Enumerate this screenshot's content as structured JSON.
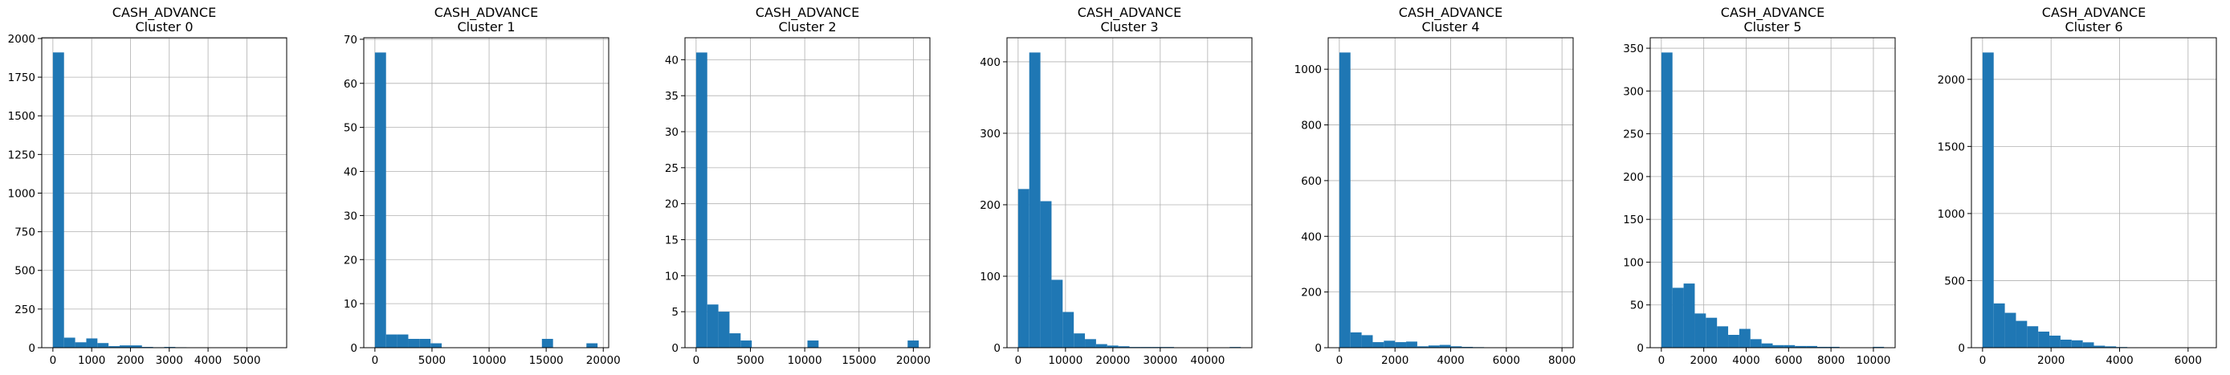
{
  "chart_data": [
    {
      "type": "bar",
      "title": [
        "CASH_ADVANCE",
        "Cluster 0"
      ],
      "bin_edges": [
        0,
        287,
        574,
        861,
        1148,
        1435,
        1722,
        2009,
        2296,
        2583,
        2870,
        3157,
        3444,
        3731,
        4018,
        4305,
        4592,
        4879,
        5166,
        5453,
        5740
      ],
      "values": [
        1910,
        65,
        35,
        60,
        30,
        10,
        15,
        15,
        5,
        3,
        5,
        3,
        2,
        1,
        1,
        1,
        0,
        1,
        0,
        1
      ],
      "xlim": [
        -287,
        6027
      ],
      "ylim": [
        0,
        2005
      ],
      "xticks": [
        0,
        1000,
        2000,
        3000,
        4000,
        5000
      ],
      "xtick_labels": [
        "0",
        "1000",
        "2000",
        "3000",
        "4000",
        "5000"
      ],
      "yticks": [
        0,
        250,
        500,
        750,
        1000,
        1250,
        1500,
        1750,
        2000
      ],
      "ytick_labels": [
        "0",
        "250",
        "500",
        "750",
        "1000",
        "1250",
        "1500",
        "1750",
        "2000"
      ],
      "grid": true,
      "bar_color": "#1f77b4"
    },
    {
      "type": "bar",
      "title": [
        "CASH_ADVANCE",
        "Cluster 1"
      ],
      "bin_edges": [
        0,
        975,
        1950,
        2925,
        3900,
        4875,
        5850,
        6825,
        7800,
        8775,
        9750,
        10725,
        11700,
        12675,
        13650,
        14625,
        15600,
        16575,
        17550,
        18525,
        19500
      ],
      "values": [
        67,
        3,
        3,
        2,
        2,
        1,
        0,
        0,
        0,
        0,
        0,
        0,
        0,
        0,
        0,
        2,
        0,
        0,
        0,
        1
      ],
      "xlim": [
        -975,
        20475
      ],
      "ylim": [
        0,
        70.35
      ],
      "xticks": [
        0,
        5000,
        10000,
        15000,
        20000
      ],
      "xtick_labels": [
        "0",
        "5000",
        "10000",
        "15000",
        "20000"
      ],
      "yticks": [
        0,
        10,
        20,
        30,
        40,
        50,
        60,
        70
      ],
      "ytick_labels": [
        "0",
        "10",
        "20",
        "30",
        "40",
        "50",
        "60",
        "70"
      ],
      "grid": true,
      "bar_color": "#1f77b4"
    },
    {
      "type": "bar",
      "title": [
        "CASH_ADVANCE",
        "Cluster 2"
      ],
      "bin_edges": [
        0,
        1025,
        2050,
        3075,
        4100,
        5125,
        6150,
        7175,
        8200,
        9225,
        10250,
        11275,
        12300,
        13325,
        14350,
        15375,
        16400,
        17425,
        18450,
        19475,
        20500
      ],
      "values": [
        41,
        6,
        5,
        2,
        1,
        0,
        0,
        0,
        0,
        0,
        1,
        0,
        0,
        0,
        0,
        0,
        0,
        0,
        0,
        1
      ],
      "xlim": [
        -1025,
        21525
      ],
      "ylim": [
        0,
        43.05
      ],
      "xticks": [
        0,
        5000,
        10000,
        15000,
        20000
      ],
      "xtick_labels": [
        "0",
        "5000",
        "10000",
        "15000",
        "20000"
      ],
      "yticks": [
        0,
        5,
        10,
        15,
        20,
        25,
        30,
        35,
        40
      ],
      "ytick_labels": [
        "0",
        "5",
        "10",
        "15",
        "20",
        "25",
        "30",
        "35",
        "40"
      ],
      "grid": true,
      "bar_color": "#1f77b4"
    },
    {
      "type": "bar",
      "title": [
        "CASH_ADVANCE",
        "Cluster 3"
      ],
      "bin_edges": [
        0,
        2350,
        4700,
        7050,
        9400,
        11750,
        14100,
        16450,
        18800,
        21150,
        23500,
        25850,
        28200,
        30550,
        32900,
        35250,
        37600,
        39950,
        42300,
        44650,
        47000
      ],
      "values": [
        222,
        413,
        205,
        95,
        50,
        20,
        12,
        5,
        3,
        2,
        1,
        1,
        1,
        1,
        0,
        0,
        0,
        0,
        0,
        1
      ],
      "xlim": [
        -2350,
        49350
      ],
      "ylim": [
        0,
        433.65
      ],
      "xticks": [
        0,
        10000,
        20000,
        30000,
        40000
      ],
      "xtick_labels": [
        "0",
        "10000",
        "20000",
        "30000",
        "40000"
      ],
      "yticks": [
        0,
        100,
        200,
        300,
        400
      ],
      "ytick_labels": [
        "0",
        "100",
        "200",
        "300",
        "400"
      ],
      "grid": true,
      "bar_color": "#1f77b4"
    },
    {
      "type": "bar",
      "title": [
        "CASH_ADVANCE",
        "Cluster 4"
      ],
      "bin_edges": [
        0,
        400,
        800,
        1200,
        1600,
        2000,
        2400,
        2800,
        3200,
        3600,
        4000,
        4400,
        4800,
        5200,
        5600,
        6000,
        6400,
        6800,
        7200,
        7600,
        8000
      ],
      "values": [
        1060,
        55,
        45,
        20,
        25,
        20,
        22,
        5,
        8,
        10,
        5,
        3,
        2,
        1,
        1,
        1,
        0,
        0,
        0,
        1
      ],
      "xlim": [
        -400,
        8400
      ],
      "ylim": [
        0,
        1113
      ],
      "xticks": [
        0,
        2000,
        4000,
        6000,
        8000
      ],
      "xtick_labels": [
        "0",
        "2000",
        "4000",
        "6000",
        "8000"
      ],
      "yticks": [
        0,
        200,
        400,
        600,
        800,
        1000
      ],
      "ytick_labels": [
        "0",
        "200",
        "400",
        "600",
        "800",
        "1000"
      ],
      "grid": true,
      "bar_color": "#1f77b4"
    },
    {
      "type": "bar",
      "title": [
        "CASH_ADVANCE",
        "Cluster 5"
      ],
      "bin_edges": [
        0,
        525,
        1050,
        1575,
        2100,
        2625,
        3150,
        3675,
        4200,
        4725,
        5250,
        5775,
        6300,
        6825,
        7350,
        7875,
        8400,
        8925,
        9450,
        9975,
        10500
      ],
      "values": [
        345,
        70,
        75,
        40,
        35,
        25,
        15,
        22,
        10,
        5,
        3,
        3,
        2,
        2,
        1,
        1,
        0,
        0,
        0,
        1
      ],
      "xlim": [
        -525,
        11025
      ],
      "ylim": [
        0,
        362.25
      ],
      "xticks": [
        0,
        2000,
        4000,
        6000,
        8000,
        10000
      ],
      "xtick_labels": [
        "0",
        "2000",
        "4000",
        "6000",
        "8000",
        "10000"
      ],
      "yticks": [
        0,
        50,
        100,
        150,
        200,
        250,
        300,
        350
      ],
      "ytick_labels": [
        "0",
        "50",
        "100",
        "150",
        "200",
        "250",
        "300",
        "350"
      ],
      "grid": true,
      "bar_color": "#1f77b4"
    },
    {
      "type": "bar",
      "title": [
        "CASH_ADVANCE",
        "Cluster 6"
      ],
      "bin_edges": [
        0,
        325,
        650,
        975,
        1300,
        1625,
        1950,
        2275,
        2600,
        2925,
        3250,
        3575,
        3900,
        4225,
        4550,
        4875,
        5200,
        5525,
        5850,
        6175,
        6500
      ],
      "values": [
        2200,
        330,
        260,
        200,
        160,
        120,
        90,
        60,
        55,
        40,
        15,
        10,
        5,
        3,
        2,
        1,
        1,
        0,
        0,
        1
      ],
      "xlim": [
        -325,
        6825
      ],
      "ylim": [
        0,
        2310
      ],
      "xticks": [
        0,
        2000,
        4000,
        6000
      ],
      "xtick_labels": [
        "0",
        "2000",
        "4000",
        "6000"
      ],
      "yticks": [
        0,
        500,
        1000,
        1500,
        2000
      ],
      "ytick_labels": [
        "0",
        "500",
        "1000",
        "1500",
        "2000"
      ],
      "grid": true,
      "bar_color": "#1f77b4"
    }
  ]
}
